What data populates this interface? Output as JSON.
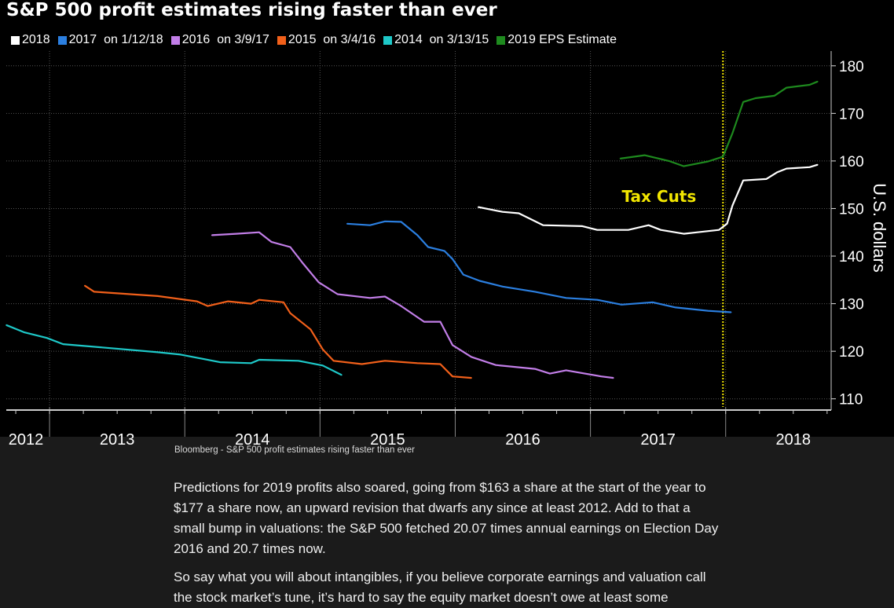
{
  "chart_data": {
    "type": "line",
    "title": "S&P 500 profit estimates rising faster than ever",
    "ylabel": "U.S. dollars",
    "xlabel": "",
    "xlim": [
      2012.68,
      2018.78
    ],
    "ylim": [
      108.3,
      183.1
    ],
    "yticks": [
      110,
      120,
      130,
      140,
      150,
      160,
      170,
      180
    ],
    "xtick_labels": [
      "2012",
      "2013",
      "2014",
      "2015",
      "2016",
      "2017",
      "2018"
    ],
    "grid": true,
    "legend_position": "top",
    "annotation": {
      "text": "Tax Cuts",
      "x": 2017.98,
      "color": "#f2e600"
    },
    "series": [
      {
        "name": "2018",
        "color": "#ffffff",
        "x": [
          2016.17,
          2016.35,
          2016.47,
          2016.65,
          2016.94,
          2017.05,
          2017.28,
          2017.43,
          2017.52,
          2017.69,
          2017.95,
          2018.01,
          2018.05,
          2018.13,
          2018.3,
          2018.38,
          2018.45,
          2018.62,
          2018.68
        ],
        "y": [
          150.3,
          149.3,
          149,
          146.5,
          146.3,
          145.5,
          145.5,
          146.5,
          145.5,
          144.7,
          145.5,
          146.8,
          150.6,
          155.9,
          156.2,
          157.6,
          158.4,
          158.7,
          159.2
        ]
      },
      {
        "name": "2017  on 1/12/18",
        "color": "#2b7fe0",
        "x": [
          2015.2,
          2015.37,
          2015.48,
          2015.6,
          2015.72,
          2015.8,
          2015.92,
          2015.98,
          2016.06,
          2016.18,
          2016.35,
          2016.59,
          2016.82,
          2017.05,
          2017.23,
          2017.46,
          2017.63,
          2017.87,
          2018.04
        ],
        "y": [
          146.8,
          146.5,
          147.3,
          147.2,
          144.4,
          141.9,
          141.1,
          139.4,
          136.1,
          134.8,
          133.6,
          132.5,
          131.2,
          130.8,
          129.8,
          130.3,
          129.2,
          128.5,
          128.2
        ]
      },
      {
        "name": "2016  on 3/9/17",
        "color": "#c27ee8",
        "x": [
          2014.2,
          2014.38,
          2014.55,
          2014.64,
          2014.78,
          2014.87,
          2014.99,
          2015.13,
          2015.37,
          2015.48,
          2015.6,
          2015.77,
          2015.89,
          2015.98,
          2016.12,
          2016.3,
          2016.59,
          2016.7,
          2016.82,
          2017.08,
          2017.17
        ],
        "y": [
          144.4,
          144.7,
          145,
          143,
          141.9,
          138.6,
          134.5,
          132,
          131.2,
          131.5,
          129.5,
          126.2,
          126.2,
          121.3,
          118.8,
          117.1,
          116.3,
          115.3,
          116,
          114.7,
          114.4
        ]
      },
      {
        "name": "2015  on 3/4/16",
        "color": "#f2601a",
        "x": [
          2013.26,
          2013.33,
          2013.8,
          2014.09,
          2014.17,
          2014.32,
          2014.49,
          2014.55,
          2014.73,
          2014.78,
          2014.93,
          2015.02,
          2015.1,
          2015.31,
          2015.48,
          2015.72,
          2015.89,
          2015.98,
          2016.12
        ],
        "y": [
          133.8,
          132.5,
          131.6,
          130.5,
          129.5,
          130.5,
          130,
          130.8,
          130.3,
          128,
          124.6,
          120.4,
          118,
          117.3,
          118,
          117.5,
          117.3,
          114.7,
          114.4
        ]
      },
      {
        "name": "2014  on 3/13/15",
        "color": "#1ec8c8",
        "x": [
          2012.68,
          2012.81,
          2012.98,
          2013.1,
          2013.39,
          2013.8,
          2013.97,
          2014.26,
          2014.49,
          2014.55,
          2014.84,
          2015.02,
          2015.16
        ],
        "y": [
          125.5,
          124,
          122.8,
          121.5,
          120.8,
          119.8,
          119.3,
          117.7,
          117.5,
          118.2,
          118,
          117,
          115
        ]
      },
      {
        "name": "2019 EPS Estimate",
        "color": "#1e8a1e",
        "x": [
          2017.22,
          2017.4,
          2017.58,
          2017.69,
          2017.87,
          2017.98,
          2018.05,
          2018.13,
          2018.22,
          2018.36,
          2018.45,
          2018.62,
          2018.68
        ],
        "y": [
          160.5,
          161.2,
          160,
          158.9,
          159.9,
          160.9,
          165.8,
          172.4,
          173.2,
          173.7,
          175.4,
          176,
          176.7
        ]
      }
    ]
  },
  "caption": "Bloomberg - S&P 500 profit estimates rising faster than ever",
  "article": {
    "paragraphs": [
      "Predictions for 2019 profits also soared, going from $163 a share at the start of the year to $177 a share now, an upward revision that dwarfs any since at least 2012. Add to that a small bump in valuations: the S&P 500 fetched 20.07 times annual earnings on Election Day 2016 and 20.7 times now.",
      "So say what you will about intangibles, if you believe corporate earnings and valuation call the stock market’s tune, it’s hard to say the equity market doesn’t owe at least some"
    ]
  }
}
